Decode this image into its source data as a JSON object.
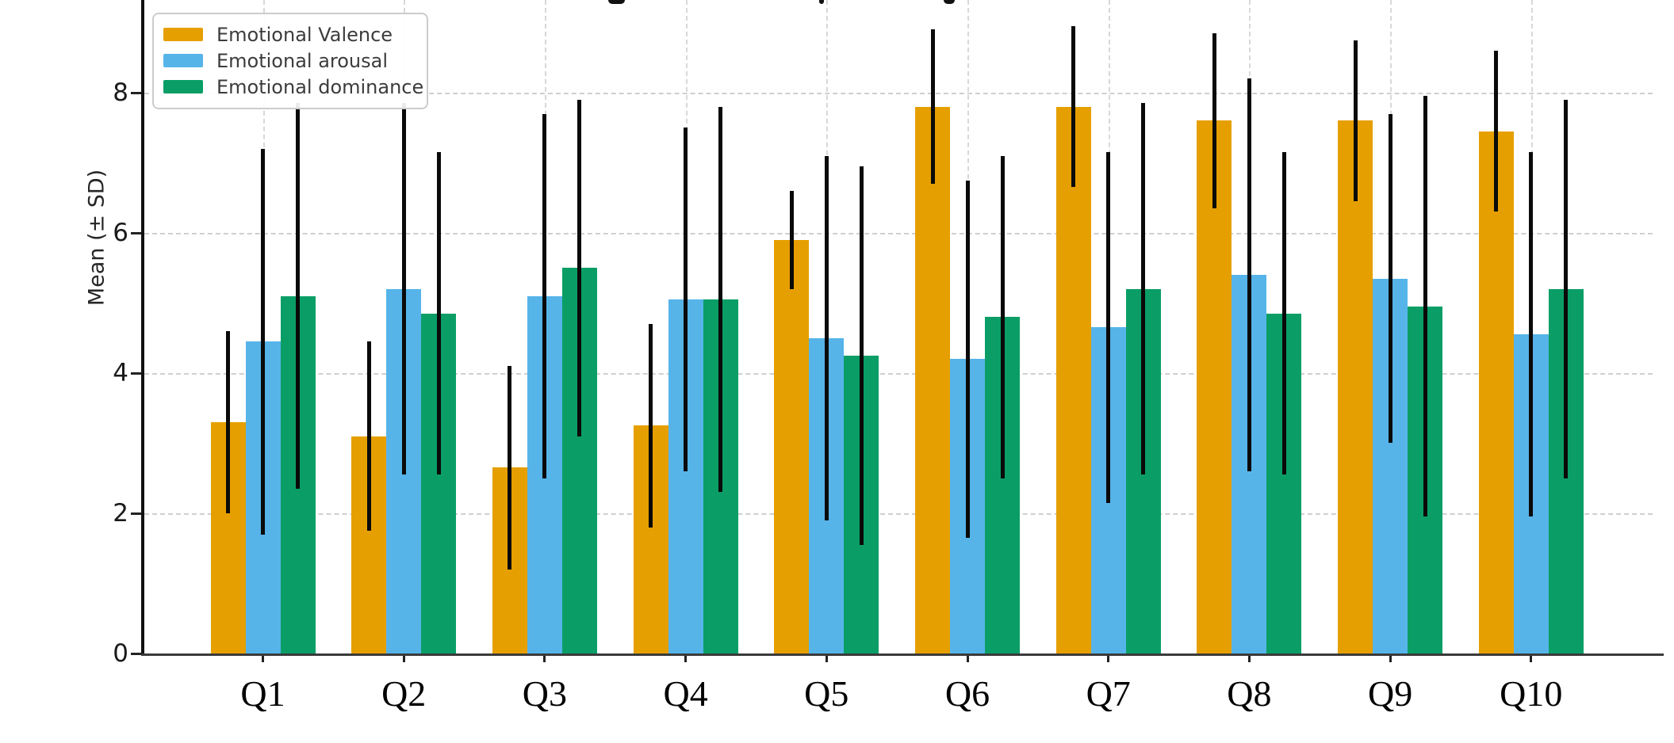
{
  "chart_data": {
    "type": "bar",
    "title_visible": false,
    "ylabel": "Mean (± SD)",
    "yticks": [
      0,
      2,
      4,
      6,
      8
    ],
    "ylim": [
      0,
      9.32
    ],
    "grid": "dashed horizontal gridlines at yticks and dashed vertical gridlines at each category center",
    "legend_position": "upper left",
    "error_bars": "± SD, black vertical lines without caps",
    "categories": [
      "Q1",
      "Q2",
      "Q3",
      "Q4",
      "Q5",
      "Q6",
      "Q7",
      "Q8",
      "Q9",
      "Q10"
    ],
    "series": [
      {
        "name": "Emotional Valence",
        "color": "#E69F00",
        "values": [
          3.3,
          3.1,
          2.65,
          3.25,
          5.9,
          7.8,
          7.8,
          7.6,
          7.6,
          7.45
        ],
        "sd": [
          1.3,
          1.35,
          1.45,
          1.45,
          0.7,
          1.1,
          1.15,
          1.25,
          1.15,
          1.15
        ]
      },
      {
        "name": "Emotional arousal",
        "color": "#56B4E9",
        "values": [
          4.45,
          5.2,
          5.1,
          5.05,
          4.5,
          4.2,
          4.65,
          5.4,
          5.35,
          4.55
        ],
        "sd": [
          2.75,
          2.65,
          2.6,
          2.45,
          2.6,
          2.55,
          2.5,
          2.8,
          2.35,
          2.6
        ]
      },
      {
        "name": "Emotional dominance",
        "color": "#0A9E66",
        "values": [
          5.1,
          4.85,
          5.5,
          5.05,
          4.25,
          4.8,
          5.2,
          4.85,
          4.95,
          5.2
        ],
        "sd": [
          2.75,
          2.3,
          2.4,
          2.75,
          2.7,
          2.3,
          2.65,
          2.3,
          3.0,
          2.7
        ]
      }
    ],
    "axis_colors": {
      "spine": "#111111",
      "grid": "#cfcfcf",
      "tick_label": "#1a1a1a"
    }
  }
}
